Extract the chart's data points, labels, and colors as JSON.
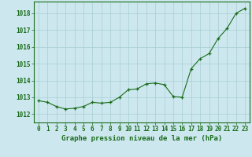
{
  "x": [
    0,
    1,
    2,
    3,
    4,
    5,
    6,
    7,
    8,
    9,
    10,
    11,
    12,
    13,
    14,
    15,
    16,
    17,
    18,
    19,
    20,
    21,
    22,
    23
  ],
  "y": [
    1012.8,
    1012.7,
    1012.45,
    1012.3,
    1012.35,
    1012.45,
    1012.7,
    1012.65,
    1012.7,
    1013.0,
    1013.45,
    1013.5,
    1013.8,
    1013.85,
    1013.75,
    1013.05,
    1013.0,
    1014.7,
    1015.3,
    1015.6,
    1016.5,
    1017.1,
    1018.0,
    1018.3
  ],
  "line_color": "#1a6b1a",
  "marker": "+",
  "marker_color": "#1a6b1a",
  "bg_color": "#cce8ee",
  "grid_color": "#a8cdd4",
  "axis_color": "#1a6b1a",
  "tick_color": "#1a6b1a",
  "label_color": "#1a6b1a",
  "xlabel": "Graphe pression niveau de la mer (hPa)",
  "ylim": [
    1011.5,
    1018.7
  ],
  "yticks": [
    1012,
    1013,
    1014,
    1015,
    1016,
    1017,
    1018
  ],
  "xticks": [
    0,
    1,
    2,
    3,
    4,
    5,
    6,
    7,
    8,
    9,
    10,
    11,
    12,
    13,
    14,
    15,
    16,
    17,
    18,
    19,
    20,
    21,
    22,
    23
  ],
  "xtick_labels": [
    "0",
    "1",
    "2",
    "3",
    "4",
    "5",
    "6",
    "7",
    "8",
    "9",
    "10",
    "11",
    "12",
    "13",
    "14",
    "15",
    "16",
    "17",
    "18",
    "19",
    "20",
    "21",
    "22",
    "23"
  ],
  "xlabel_fontsize": 6.5,
  "tick_fontsize": 5.5,
  "line_width": 0.8,
  "marker_size": 3.5
}
